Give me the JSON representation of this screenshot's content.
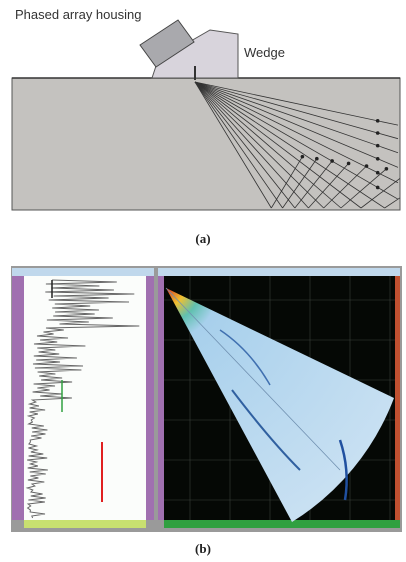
{
  "labels": {
    "housing": "Phased array housing",
    "wedge": "Wedge"
  },
  "captions": {
    "a": "(a)",
    "b": "(b)"
  }
}
